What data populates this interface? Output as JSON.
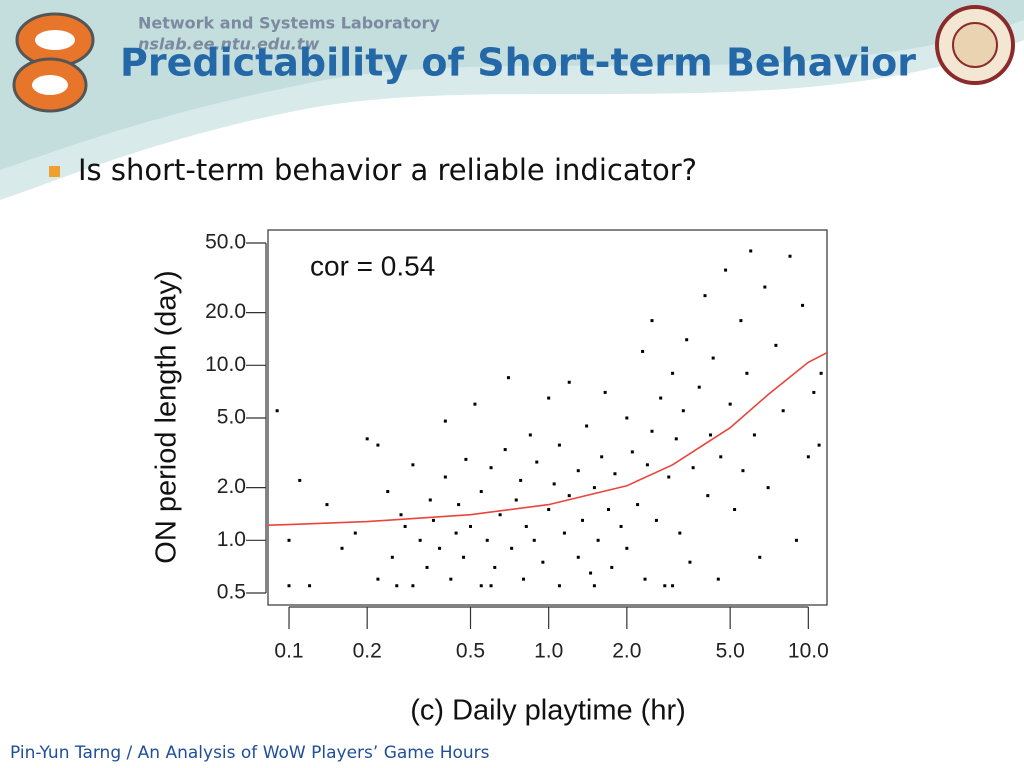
{
  "header": {
    "lab": "Network and Systems Laboratory",
    "url": "nslab.ee.ntu.edu.tw",
    "title": "Predictability of Short-term Behavior"
  },
  "bullets": [
    "Is short-term behavior a reliable indicator?"
  ],
  "footer": "Pin-Yun Tarng / An Analysis of WoW Players’ Game Hours",
  "chart_data": {
    "type": "scatter",
    "x_label": "(c) Daily playtime (hr)",
    "y_label": "ON period length (day)",
    "annotations": [
      "cor = 0.54"
    ],
    "color": "#000000",
    "x": [
      0.09,
      0.1,
      0.11,
      0.1,
      0.12,
      0.14,
      0.16,
      0.18,
      0.2,
      0.22,
      0.22,
      0.24,
      0.25,
      0.27,
      0.28,
      0.3,
      0.3,
      0.32,
      0.34,
      0.35,
      0.36,
      0.38,
      0.4,
      0.4,
      0.42,
      0.44,
      0.45,
      0.47,
      0.48,
      0.5,
      0.52,
      0.55,
      0.55,
      0.58,
      0.6,
      0.62,
      0.65,
      0.68,
      0.7,
      0.72,
      0.75,
      0.78,
      0.8,
      0.82,
      0.85,
      0.88,
      0.9,
      0.95,
      1.0,
      1.0,
      1.05,
      1.1,
      1.1,
      1.15,
      1.2,
      1.2,
      1.3,
      1.3,
      1.35,
      1.4,
      1.45,
      1.5,
      1.55,
      1.6,
      1.65,
      1.7,
      1.75,
      1.8,
      1.9,
      2.0,
      2.0,
      2.1,
      2.2,
      2.3,
      2.35,
      2.4,
      2.5,
      2.5,
      2.6,
      2.7,
      2.8,
      2.9,
      3.0,
      3.1,
      3.2,
      3.3,
      3.4,
      3.5,
      3.6,
      3.8,
      4.0,
      4.1,
      4.2,
      4.3,
      4.5,
      4.6,
      4.8,
      5.0,
      5.2,
      5.5,
      5.6,
      5.8,
      6.0,
      6.2,
      6.5,
      6.8,
      7.0,
      7.5,
      8.0,
      8.5,
      9.0,
      9.5,
      10.0,
      10.5,
      11.0,
      11.2,
      0.26,
      0.6,
      1.5,
      3.0
    ],
    "values": [
      5.5,
      1.0,
      2.2,
      0.55,
      0.55,
      1.6,
      0.9,
      1.1,
      3.8,
      0.6,
      3.5,
      1.9,
      0.8,
      1.4,
      1.2,
      0.55,
      2.7,
      1.0,
      0.7,
      1.7,
      1.3,
      0.9,
      4.8,
      2.3,
      0.6,
      1.1,
      1.6,
      0.8,
      2.9,
      1.2,
      6.0,
      0.55,
      1.9,
      1.0,
      2.6,
      0.7,
      1.4,
      3.3,
      8.5,
      0.9,
      1.7,
      2.2,
      0.6,
      1.2,
      4.0,
      1.0,
      2.8,
      0.75,
      1.5,
      6.5,
      2.1,
      0.55,
      3.5,
      1.1,
      8.0,
      1.8,
      0.8,
      2.5,
      1.3,
      4.5,
      0.65,
      2.0,
      1.0,
      3.0,
      7.0,
      1.5,
      0.7,
      2.4,
      1.2,
      5.0,
      0.9,
      3.2,
      1.6,
      12.0,
      0.6,
      2.7,
      4.2,
      18.0,
      1.3,
      6.5,
      0.55,
      2.3,
      9.0,
      3.8,
      1.1,
      5.5,
      14.0,
      0.75,
      2.6,
      7.5,
      25.0,
      1.8,
      4.0,
      11.0,
      0.6,
      3.0,
      35.0,
      6.0,
      1.5,
      18.0,
      2.5,
      9.0,
      45.0,
      4.0,
      0.8,
      28.0,
      2.0,
      13.0,
      5.5,
      42.0,
      1.0,
      22.0,
      3.0,
      7.0,
      3.5,
      9.0,
      0.55,
      0.55,
      0.55,
      0.55
    ],
    "fit": {
      "color": "#e8463c",
      "x": [
        0.083,
        0.1,
        0.2,
        0.5,
        1.0,
        2.0,
        3.0,
        5.0,
        7.0,
        10.0,
        11.8
      ],
      "values": [
        1.22,
        1.23,
        1.28,
        1.4,
        1.6,
        2.05,
        2.7,
        4.4,
        6.8,
        10.4,
        11.8
      ]
    },
    "xscale": "log",
    "yscale": "log",
    "xlim": [
      0.083,
      11.8
    ],
    "ylim": [
      0.427,
      59.3
    ],
    "xticks": [
      0.1,
      0.2,
      0.5,
      {
        "value": 1,
        "label": "1.0"
      },
      {
        "value": 2,
        "label": "2.0"
      },
      {
        "value": 5,
        "label": "5.0"
      },
      {
        "value": 10,
        "label": "10.0"
      }
    ],
    "yticks": [
      {
        "value": 0.5,
        "label": "0.5"
      },
      {
        "value": 1,
        "label": "1.0"
      },
      {
        "value": 2,
        "label": "2.0"
      },
      {
        "value": 5,
        "label": "5.0"
      },
      {
        "value": 10,
        "label": "10.0"
      },
      {
        "value": 20,
        "label": "20.0"
      },
      {
        "value": 50,
        "label": "50.0"
      }
    ]
  }
}
